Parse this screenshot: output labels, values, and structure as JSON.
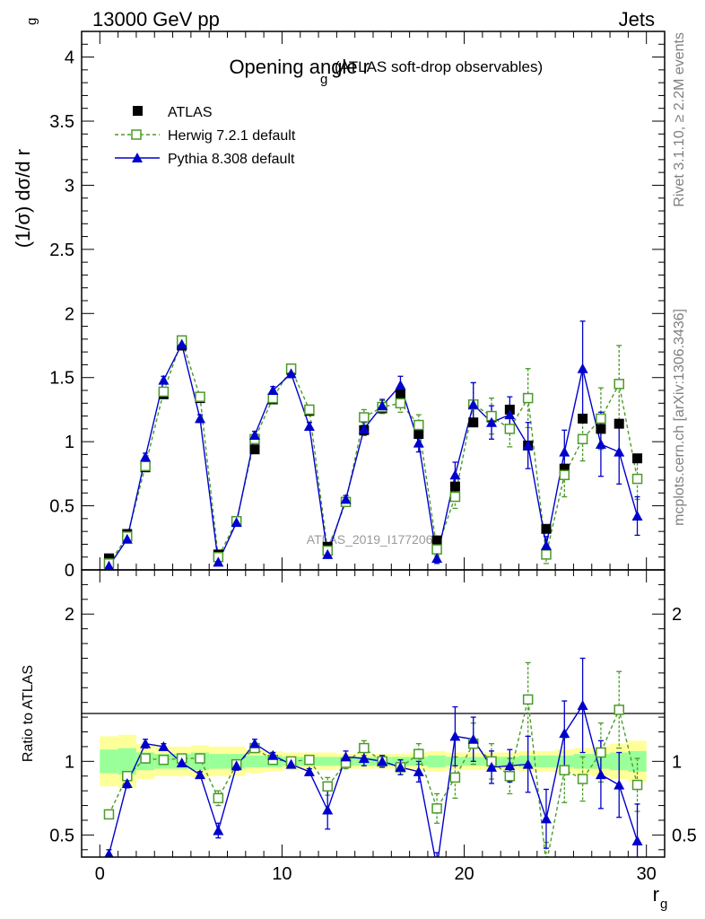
{
  "header": {
    "left": "13000 GeV pp",
    "right": "Jets"
  },
  "side": {
    "rivet": "Rivet 3.1.10, ≥ 2.2M events",
    "mcplots": "mcplots.cern.ch [arXiv:1306.3436]"
  },
  "watermark": "ATLAS_2019_I1772062",
  "chart_data": [
    {
      "panel": "main",
      "type": "scatter",
      "title": "Opening angle r",
      "title_sub": "g",
      "title_suffix": "(ATLAS soft-drop observables)",
      "ylabel": "(1/σ) dσ/d r",
      "ylabel_sub": "g",
      "xlim": [
        -1,
        31
      ],
      "ylim": [
        0,
        4.2
      ],
      "yticks": [
        0,
        0.5,
        1,
        1.5,
        2,
        2.5,
        3,
        3.5,
        4
      ],
      "ytick_labels": [
        "0",
        "0.5",
        "1",
        "1.5",
        "2",
        "2.5",
        "3",
        "3.5",
        "4"
      ],
      "legend_position": "top-left",
      "x": [
        0.5,
        1.5,
        2.5,
        3.5,
        4.5,
        5.5,
        6.5,
        7.5,
        8.5,
        9.5,
        10.5,
        11.5,
        12.5,
        13.5,
        14.5,
        15.5,
        16.5,
        17.5,
        18.5,
        19.5,
        20.5,
        21.5,
        22.5,
        23.5,
        24.5,
        25.5,
        26.5,
        27.5,
        28.5,
        29.5
      ],
      "series": [
        {
          "name": "ATLAS",
          "color": "#000000",
          "marker": "square",
          "values": [
            0.09,
            0.28,
            0.8,
            1.37,
            1.75,
            1.34,
            0.12,
            0.38,
            0.94,
            1.33,
            1.56,
            1.24,
            0.18,
            0.53,
            1.09,
            1.26,
            1.37,
            1.06,
            0.23,
            0.65,
            1.15,
            1.19,
            1.25,
            0.97,
            0.32,
            0.79,
            1.18,
            1.1,
            1.14,
            0.87
          ]
        },
        {
          "name": "Herwig 7.2.1 default",
          "color": "#4c9a2a",
          "marker": "open-square",
          "values": [
            0.05,
            0.26,
            0.81,
            1.39,
            1.79,
            1.35,
            0.1,
            0.38,
            1.02,
            1.34,
            1.57,
            1.25,
            0.15,
            0.53,
            1.19,
            1.27,
            1.3,
            1.13,
            0.16,
            0.57,
            1.29,
            1.2,
            1.1,
            1.34,
            0.12,
            0.74,
            1.02,
            1.18,
            1.45,
            0.71
          ],
          "errors": [
            0.01,
            0.02,
            0.03,
            0.03,
            0.03,
            0.03,
            0.01,
            0.02,
            0.03,
            0.03,
            0.03,
            0.03,
            0.02,
            0.03,
            0.06,
            0.05,
            0.07,
            0.08,
            0.05,
            0.09,
            0.17,
            0.14,
            0.14,
            0.23,
            0.07,
            0.17,
            0.17,
            0.24,
            0.3,
            0.16
          ]
        },
        {
          "name": "Pythia 8.308 default",
          "color": "#0000cc",
          "marker": "triangle",
          "values": [
            0.03,
            0.24,
            0.88,
            1.48,
            1.76,
            1.18,
            0.06,
            0.37,
            1.05,
            1.4,
            1.53,
            1.12,
            0.12,
            0.55,
            1.1,
            1.28,
            1.44,
            0.99,
            0.09,
            0.74,
            1.29,
            1.15,
            1.21,
            0.97,
            0.19,
            0.92,
            1.57,
            0.98,
            0.92,
            0.42
          ],
          "errors": [
            0.01,
            0.02,
            0.03,
            0.03,
            0.03,
            0.03,
            0.01,
            0.02,
            0.03,
            0.03,
            0.03,
            0.03,
            0.02,
            0.03,
            0.05,
            0.05,
            0.07,
            0.07,
            0.04,
            0.1,
            0.17,
            0.13,
            0.14,
            0.18,
            0.07,
            0.17,
            0.37,
            0.25,
            0.25,
            0.15
          ]
        }
      ]
    },
    {
      "panel": "ratio",
      "type": "scatter",
      "ylabel": "Ratio to ATLAS",
      "xlabel": "r",
      "xlabel_sub": "g",
      "xlim": [
        -1,
        31
      ],
      "ylim": [
        0.35,
        2.3
      ],
      "xticks": [
        0,
        10,
        20,
        30
      ],
      "xtick_labels": [
        "0",
        "10",
        "20",
        "30"
      ],
      "yticks": [
        0.5,
        1,
        2
      ],
      "ytick_labels": [
        "0.5",
        "1",
        "2"
      ],
      "x": [
        0.5,
        1.5,
        2.5,
        3.5,
        4.5,
        5.5,
        6.5,
        7.5,
        8.5,
        9.5,
        10.5,
        11.5,
        12.5,
        13.5,
        14.5,
        15.5,
        16.5,
        17.5,
        18.5,
        19.5,
        20.5,
        21.5,
        22.5,
        23.5,
        24.5,
        25.5,
        26.5,
        27.5,
        28.5,
        29.5
      ],
      "band_yellow": [
        0.17,
        0.18,
        0.12,
        0.1,
        0.1,
        0.11,
        0.1,
        0.1,
        0.08,
        0.07,
        0.06,
        0.06,
        0.06,
        0.05,
        0.05,
        0.05,
        0.05,
        0.06,
        0.07,
        0.06,
        0.06,
        0.06,
        0.06,
        0.07,
        0.07,
        0.08,
        0.09,
        0.1,
        0.12,
        0.14
      ],
      "band_green": [
        0.08,
        0.09,
        0.06,
        0.05,
        0.05,
        0.06,
        0.05,
        0.05,
        0.04,
        0.04,
        0.03,
        0.03,
        0.03,
        0.03,
        0.03,
        0.03,
        0.03,
        0.03,
        0.04,
        0.03,
        0.03,
        0.03,
        0.03,
        0.04,
        0.04,
        0.04,
        0.05,
        0.05,
        0.06,
        0.07
      ],
      "series": [
        {
          "name": "Herwig 7.2.1 default",
          "color": "#4c9a2a",
          "values": [
            0.64,
            0.9,
            1.02,
            1.01,
            1.02,
            1.02,
            0.75,
            0.98,
            1.09,
            1.01,
            1.0,
            1.01,
            0.83,
            0.99,
            1.09,
            1.0,
            0.96,
            1.05,
            0.68,
            0.89,
            1.12,
            1.0,
            0.9,
            1.42,
            0.3,
            0.94,
            0.88,
            1.06,
            1.35,
            0.84
          ],
          "errors": [
            0.03,
            0.03,
            0.03,
            0.02,
            0.02,
            0.02,
            0.05,
            0.03,
            0.03,
            0.02,
            0.02,
            0.02,
            0.06,
            0.04,
            0.05,
            0.04,
            0.05,
            0.07,
            0.1,
            0.14,
            0.14,
            0.12,
            0.12,
            0.25,
            0.15,
            0.22,
            0.15,
            0.2,
            0.26,
            0.18
          ]
        },
        {
          "name": "Pythia 8.308 default",
          "color": "#0000cc",
          "values": [
            0.37,
            0.85,
            1.12,
            1.1,
            0.99,
            0.91,
            0.53,
            0.97,
            1.12,
            1.04,
            0.98,
            0.93,
            0.67,
            1.03,
            1.02,
            1.0,
            0.96,
            0.93,
            0.28,
            1.17,
            1.15,
            0.96,
            0.97,
            0.98,
            0.61,
            1.19,
            1.38,
            0.91,
            0.84,
            0.46
          ],
          "errors": [
            0.03,
            0.03,
            0.03,
            0.02,
            0.02,
            0.02,
            0.05,
            0.03,
            0.03,
            0.02,
            0.02,
            0.02,
            0.13,
            0.04,
            0.05,
            0.04,
            0.05,
            0.07,
            0.1,
            0.2,
            0.15,
            0.11,
            0.11,
            0.19,
            0.2,
            0.22,
            0.32,
            0.23,
            0.22,
            0.25
          ]
        }
      ]
    }
  ]
}
